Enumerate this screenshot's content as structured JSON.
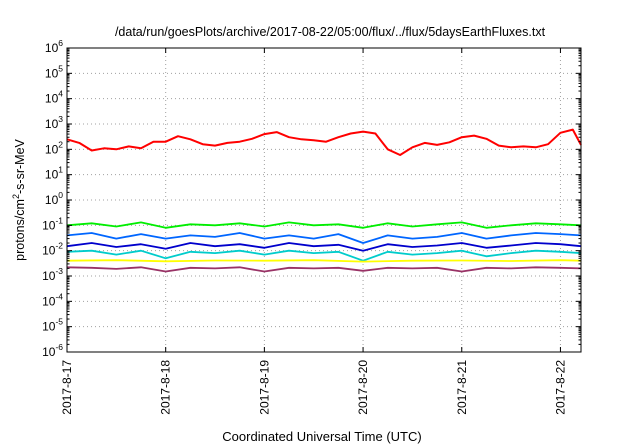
{
  "chart_data": {
    "type": "line",
    "title": "/data/run/goesPlots/archive/2017-08-22/05:00/flux/../flux/5daysEarthFluxes.txt",
    "xlabel": "Coordinated Universal Time (UTC)",
    "ylabel": {
      "base": "protons/cm",
      "sup": "2",
      "rest": "-s-sr-MeV"
    },
    "yscale": "log",
    "ylim": [
      1e-06,
      1000000.0
    ],
    "yticks": [
      {
        "base": "10",
        "exp": "-6",
        "value": 1e-06
      },
      {
        "base": "10",
        "exp": "-5",
        "value": 1e-05
      },
      {
        "base": "10",
        "exp": "-4",
        "value": 0.0001
      },
      {
        "base": "10",
        "exp": "-3",
        "value": 0.001
      },
      {
        "base": "10",
        "exp": "-2",
        "value": 0.01
      },
      {
        "base": "10",
        "exp": "-1",
        "value": 0.1
      },
      {
        "base": "10",
        "exp": "0",
        "value": 1
      },
      {
        "base": "10",
        "exp": "1",
        "value": 10
      },
      {
        "base": "10",
        "exp": "2",
        "value": 100
      },
      {
        "base": "10",
        "exp": "3",
        "value": 1000
      },
      {
        "base": "10",
        "exp": "4",
        "value": 10000
      },
      {
        "base": "10",
        "exp": "5",
        "value": 100000
      },
      {
        "base": "10",
        "exp": "6",
        "value": 1000000
      }
    ],
    "xlim": [
      "2017-08-17T00:00",
      "2017-08-22T05:00"
    ],
    "xticks": [
      {
        "label": "2017-8-17",
        "date": "2017-08-17T00:00"
      },
      {
        "label": "2017-8-18",
        "date": "2017-08-18T00:00"
      },
      {
        "label": "2017-8-19",
        "date": "2017-08-19T00:00"
      },
      {
        "label": "2017-8-20",
        "date": "2017-08-20T00:00"
      },
      {
        "label": "2017-8-21",
        "date": "2017-08-21T00:00"
      },
      {
        "label": "2017-8-22",
        "date": "2017-08-22T00:00"
      }
    ],
    "grid": true,
    "legend": "none",
    "series": [
      {
        "color": "#ff0000",
        "x": [
          "2017-08-17T00:00",
          "2017-08-17T03:00",
          "2017-08-17T06:00",
          "2017-08-17T09:00",
          "2017-08-17T12:00",
          "2017-08-17T15:00",
          "2017-08-17T18:00",
          "2017-08-17T21:00",
          "2017-08-18T00:00",
          "2017-08-18T03:00",
          "2017-08-18T06:00",
          "2017-08-18T09:00",
          "2017-08-18T12:00",
          "2017-08-18T15:00",
          "2017-08-18T18:00",
          "2017-08-18T21:00",
          "2017-08-19T00:00",
          "2017-08-19T03:00",
          "2017-08-19T06:00",
          "2017-08-19T09:00",
          "2017-08-19T12:00",
          "2017-08-19T15:00",
          "2017-08-19T18:00",
          "2017-08-19T21:00",
          "2017-08-20T00:00",
          "2017-08-20T03:00",
          "2017-08-20T06:00",
          "2017-08-20T09:00",
          "2017-08-20T12:00",
          "2017-08-20T15:00",
          "2017-08-20T18:00",
          "2017-08-20T21:00",
          "2017-08-21T00:00",
          "2017-08-21T03:00",
          "2017-08-21T06:00",
          "2017-08-21T09:00",
          "2017-08-21T12:00",
          "2017-08-21T15:00",
          "2017-08-21T18:00",
          "2017-08-21T21:00",
          "2017-08-22T00:00",
          "2017-08-22T03:00",
          "2017-08-22T05:00"
        ],
        "y": [
          250,
          180,
          90,
          110,
          100,
          130,
          110,
          200,
          200,
          330,
          250,
          160,
          140,
          180,
          200,
          260,
          400,
          480,
          300,
          250,
          230,
          200,
          300,
          420,
          500,
          420,
          100,
          60,
          120,
          180,
          150,
          190,
          300,
          350,
          260,
          140,
          120,
          130,
          120,
          160,
          450,
          600,
          150
        ]
      },
      {
        "color": "#00ee00",
        "x": [
          "2017-08-17T00:00",
          "2017-08-17T06:00",
          "2017-08-17T12:00",
          "2017-08-17T18:00",
          "2017-08-18T00:00",
          "2017-08-18T06:00",
          "2017-08-18T12:00",
          "2017-08-18T18:00",
          "2017-08-19T00:00",
          "2017-08-19T06:00",
          "2017-08-19T12:00",
          "2017-08-19T18:00",
          "2017-08-20T00:00",
          "2017-08-20T06:00",
          "2017-08-20T12:00",
          "2017-08-20T18:00",
          "2017-08-21T00:00",
          "2017-08-21T06:00",
          "2017-08-21T12:00",
          "2017-08-21T18:00",
          "2017-08-22T00:00",
          "2017-08-22T05:00"
        ],
        "y": [
          0.1,
          0.12,
          0.09,
          0.13,
          0.08,
          0.11,
          0.1,
          0.12,
          0.09,
          0.13,
          0.1,
          0.11,
          0.08,
          0.12,
          0.09,
          0.11,
          0.13,
          0.08,
          0.1,
          0.12,
          0.11,
          0.1
        ]
      },
      {
        "color": "#0066ff",
        "x": [
          "2017-08-17T00:00",
          "2017-08-17T06:00",
          "2017-08-17T12:00",
          "2017-08-17T18:00",
          "2017-08-18T00:00",
          "2017-08-18T06:00",
          "2017-08-18T12:00",
          "2017-08-18T18:00",
          "2017-08-19T00:00",
          "2017-08-19T06:00",
          "2017-08-19T12:00",
          "2017-08-19T18:00",
          "2017-08-20T00:00",
          "2017-08-20T06:00",
          "2017-08-20T12:00",
          "2017-08-20T18:00",
          "2017-08-21T00:00",
          "2017-08-21T06:00",
          "2017-08-21T12:00",
          "2017-08-21T18:00",
          "2017-08-22T00:00",
          "2017-08-22T05:00"
        ],
        "y": [
          0.04,
          0.05,
          0.03,
          0.045,
          0.03,
          0.04,
          0.035,
          0.05,
          0.03,
          0.04,
          0.03,
          0.045,
          0.02,
          0.04,
          0.03,
          0.035,
          0.05,
          0.03,
          0.04,
          0.05,
          0.045,
          0.04
        ]
      },
      {
        "color": "#0000cc",
        "x": [
          "2017-08-17T00:00",
          "2017-08-17T06:00",
          "2017-08-17T12:00",
          "2017-08-17T18:00",
          "2017-08-18T00:00",
          "2017-08-18T06:00",
          "2017-08-18T12:00",
          "2017-08-18T18:00",
          "2017-08-19T00:00",
          "2017-08-19T06:00",
          "2017-08-19T12:00",
          "2017-08-19T18:00",
          "2017-08-20T00:00",
          "2017-08-20T06:00",
          "2017-08-20T12:00",
          "2017-08-20T18:00",
          "2017-08-21T00:00",
          "2017-08-21T06:00",
          "2017-08-21T12:00",
          "2017-08-21T18:00",
          "2017-08-22T00:00",
          "2017-08-22T05:00"
        ],
        "y": [
          0.015,
          0.02,
          0.014,
          0.018,
          0.012,
          0.02,
          0.015,
          0.018,
          0.013,
          0.02,
          0.015,
          0.017,
          0.01,
          0.018,
          0.014,
          0.016,
          0.02,
          0.013,
          0.016,
          0.02,
          0.018,
          0.015
        ]
      },
      {
        "color": "#00cccc",
        "x": [
          "2017-08-17T00:00",
          "2017-08-17T06:00",
          "2017-08-17T12:00",
          "2017-08-17T18:00",
          "2017-08-18T00:00",
          "2017-08-18T06:00",
          "2017-08-18T12:00",
          "2017-08-18T18:00",
          "2017-08-19T00:00",
          "2017-08-19T06:00",
          "2017-08-19T12:00",
          "2017-08-19T18:00",
          "2017-08-20T00:00",
          "2017-08-20T06:00",
          "2017-08-20T12:00",
          "2017-08-20T18:00",
          "2017-08-21T00:00",
          "2017-08-21T06:00",
          "2017-08-21T12:00",
          "2017-08-21T18:00",
          "2017-08-22T00:00",
          "2017-08-22T05:00"
        ],
        "y": [
          0.009,
          0.01,
          0.007,
          0.01,
          0.005,
          0.009,
          0.008,
          0.01,
          0.007,
          0.01,
          0.008,
          0.009,
          0.004,
          0.009,
          0.007,
          0.008,
          0.01,
          0.006,
          0.008,
          0.01,
          0.009,
          0.008
        ]
      },
      {
        "color": "#ffff00",
        "x": [
          "2017-08-17T00:00",
          "2017-08-17T12:00",
          "2017-08-18T00:00",
          "2017-08-18T12:00",
          "2017-08-19T00:00",
          "2017-08-19T12:00",
          "2017-08-20T00:00",
          "2017-08-20T12:00",
          "2017-08-21T00:00",
          "2017-08-21T12:00",
          "2017-08-22T00:00",
          "2017-08-22T05:00"
        ],
        "y": [
          0.004,
          0.0042,
          0.0038,
          0.0041,
          0.004,
          0.0042,
          0.0037,
          0.004,
          0.0041,
          0.0039,
          0.0042,
          0.004
        ]
      },
      {
        "color": "#993366",
        "x": [
          "2017-08-17T00:00",
          "2017-08-17T06:00",
          "2017-08-17T12:00",
          "2017-08-17T18:00",
          "2017-08-18T00:00",
          "2017-08-18T06:00",
          "2017-08-18T12:00",
          "2017-08-18T18:00",
          "2017-08-19T00:00",
          "2017-08-19T06:00",
          "2017-08-19T12:00",
          "2017-08-19T18:00",
          "2017-08-20T00:00",
          "2017-08-20T06:00",
          "2017-08-20T12:00",
          "2017-08-20T18:00",
          "2017-08-21T00:00",
          "2017-08-21T06:00",
          "2017-08-21T12:00",
          "2017-08-21T18:00",
          "2017-08-22T00:00",
          "2017-08-22T05:00"
        ],
        "y": [
          0.0022,
          0.0021,
          0.0019,
          0.0022,
          0.0015,
          0.0021,
          0.002,
          0.0022,
          0.0015,
          0.0021,
          0.002,
          0.0021,
          0.0016,
          0.0021,
          0.002,
          0.0021,
          0.0015,
          0.0021,
          0.002,
          0.0022,
          0.0021,
          0.002
        ]
      }
    ]
  }
}
